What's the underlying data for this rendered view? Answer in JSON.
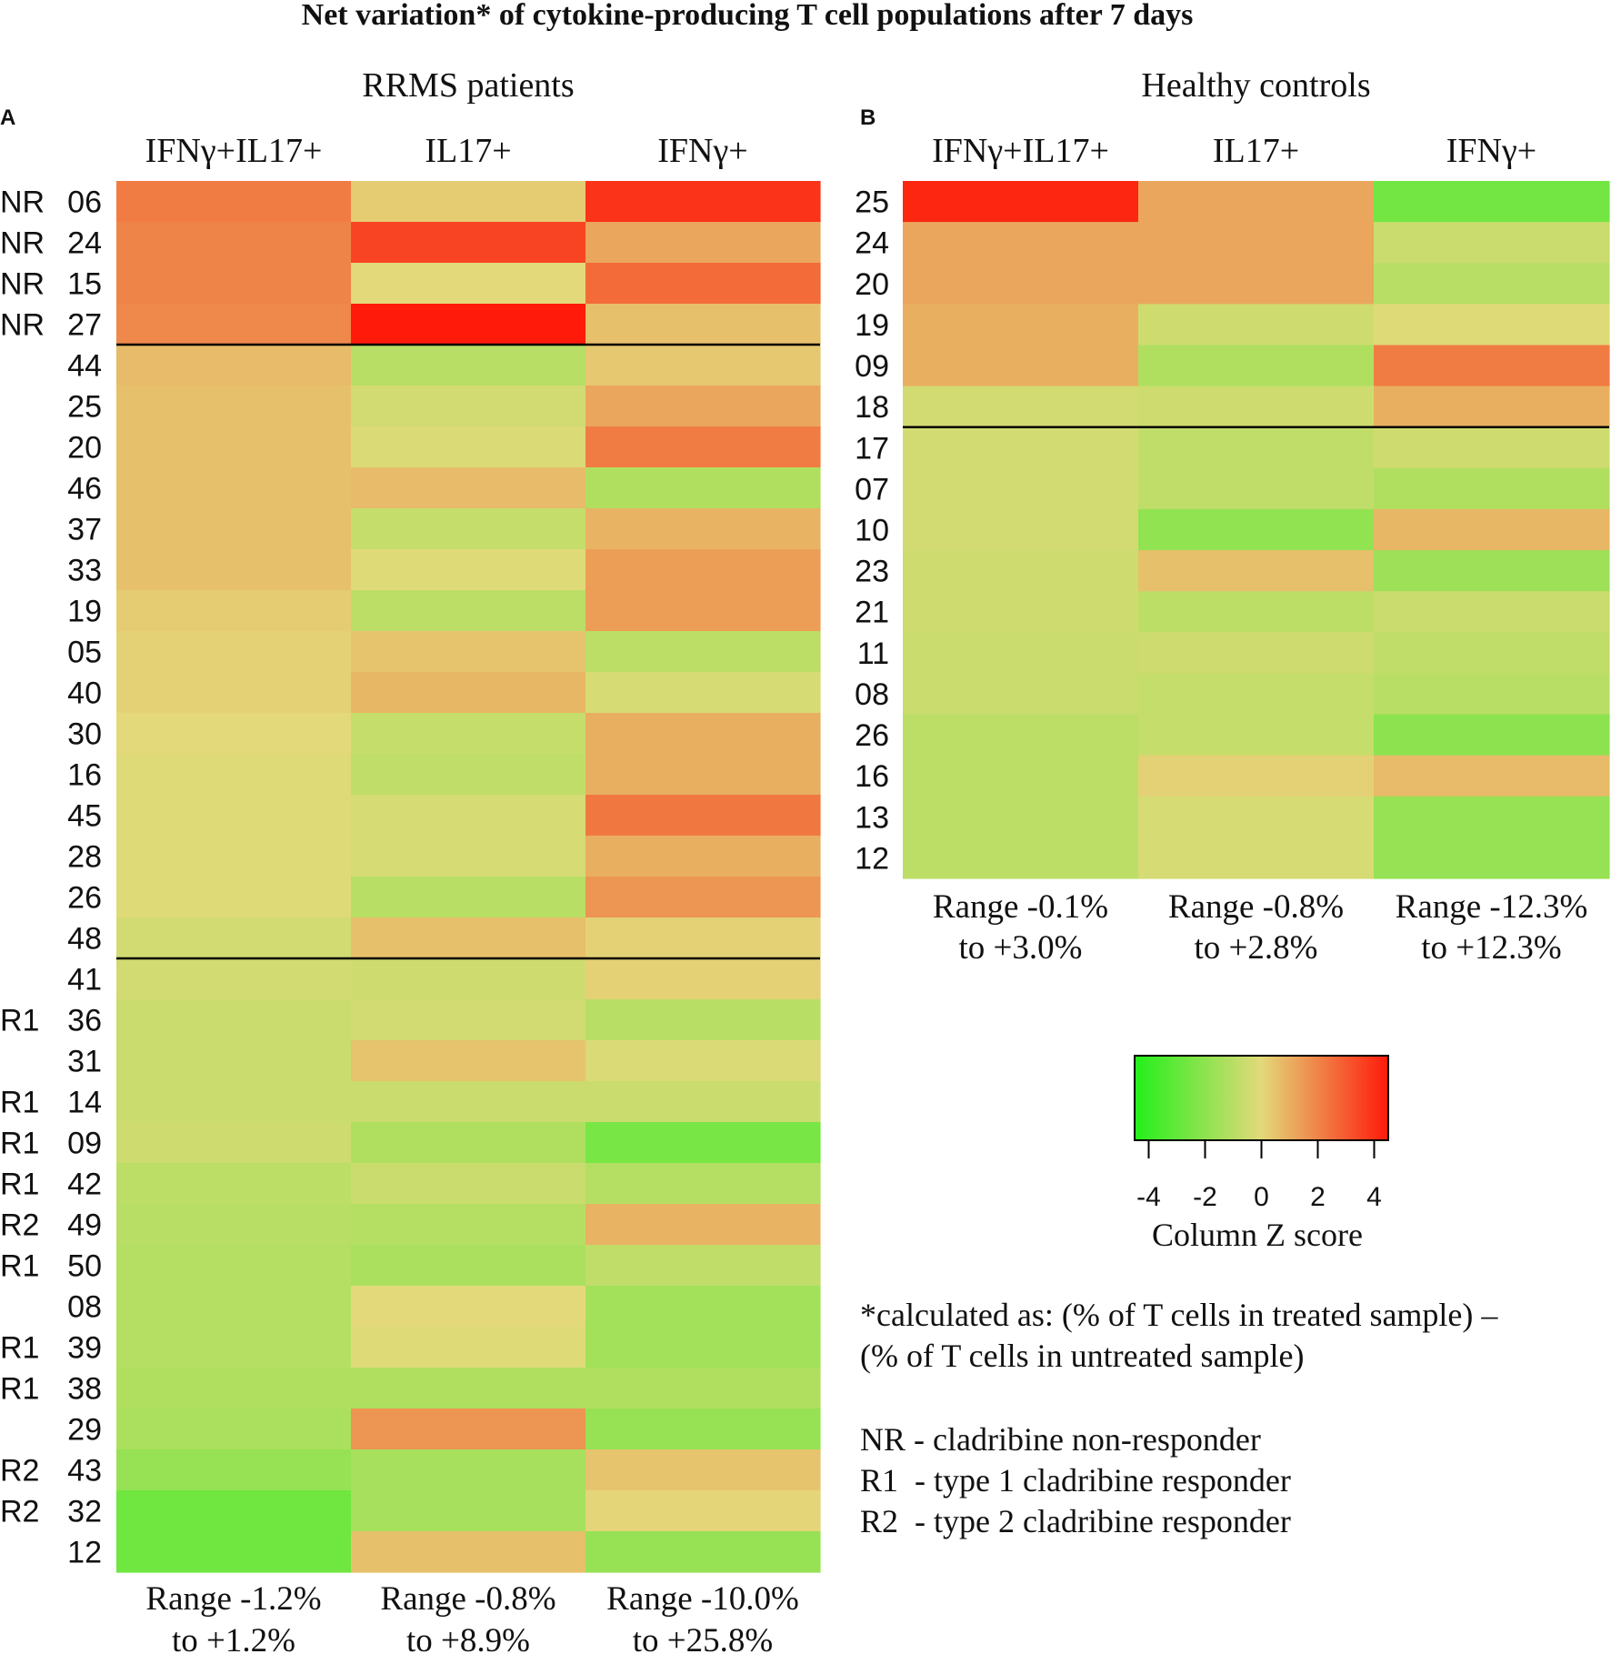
{
  "figure": {
    "title": "Net variation* of cytokine-producing T cell populations after 7 days",
    "footnote": [
      "*calculated as: (% of T cells in treated sample) –",
      "(% of T cells in untreated sample)"
    ],
    "abbreviations": [
      "NR - cladribine non-responder",
      "R1  - type 1 cladribine responder",
      "R2  - type 2 cladribine responder"
    ]
  },
  "colors": {
    "low": "#22f01a",
    "mid": "#e3d97a",
    "high": "#ff1a0a",
    "separator": "#000000",
    "text": "#111111"
  },
  "chart_data": [
    {
      "type": "heatmap",
      "panel": "A",
      "title": "RRMS patients",
      "columns": [
        "IFNγ+IL17+",
        "IL17+",
        "IFNγ+"
      ],
      "ranges": [
        [
          "Range -1.2%",
          "to +1.2%"
        ],
        [
          "Range -0.8%",
          "to +8.9%"
        ],
        [
          "Range -10.0%",
          "to +25.8%"
        ]
      ],
      "group_breaks_after_row": [
        4,
        19
      ],
      "rows": [
        {
          "group": "NR",
          "id": "06",
          "z": [
            2.2,
            0.3,
            3.9
          ]
        },
        {
          "group": "NR",
          "id": "24",
          "z": [
            2.0,
            3.5,
            1.2
          ]
        },
        {
          "group": "NR",
          "id": "15",
          "z": [
            2.0,
            0.0,
            2.6
          ]
        },
        {
          "group": "NR",
          "id": "27",
          "z": [
            1.9,
            4.5,
            0.6
          ]
        },
        {
          "group": "",
          "id": "44",
          "z": [
            0.7,
            -1.0,
            0.4
          ]
        },
        {
          "group": "",
          "id": "25",
          "z": [
            0.6,
            -0.4,
            1.2
          ]
        },
        {
          "group": "",
          "id": "20",
          "z": [
            0.6,
            -0.2,
            2.2
          ]
        },
        {
          "group": "",
          "id": "46",
          "z": [
            0.6,
            0.7,
            -1.2
          ]
        },
        {
          "group": "",
          "id": "37",
          "z": [
            0.6,
            -0.7,
            0.9
          ]
        },
        {
          "group": "",
          "id": "33",
          "z": [
            0.6,
            -0.1,
            1.4
          ]
        },
        {
          "group": "",
          "id": "19",
          "z": [
            0.3,
            -0.9,
            1.4
          ]
        },
        {
          "group": "",
          "id": "05",
          "z": [
            0.2,
            0.5,
            -0.9
          ]
        },
        {
          "group": "",
          "id": "40",
          "z": [
            0.2,
            0.8,
            -0.3
          ]
        },
        {
          "group": "",
          "id": "30",
          "z": [
            0.0,
            -0.7,
            1.0
          ]
        },
        {
          "group": "",
          "id": "16",
          "z": [
            -0.1,
            -0.8,
            1.0
          ]
        },
        {
          "group": "",
          "id": "45",
          "z": [
            -0.1,
            -0.3,
            2.3
          ]
        },
        {
          "group": "",
          "id": "28",
          "z": [
            -0.1,
            -0.3,
            1.0
          ]
        },
        {
          "group": "",
          "id": "26",
          "z": [
            -0.1,
            -1.0,
            1.6
          ]
        },
        {
          "group": "",
          "id": "48",
          "z": [
            -0.4,
            0.6,
            0.2
          ]
        },
        {
          "group": "",
          "id": "41",
          "z": [
            -0.4,
            -0.5,
            0.2
          ]
        },
        {
          "group": "R1",
          "id": "36",
          "z": [
            -0.6,
            -0.4,
            -1.0
          ]
        },
        {
          "group": "",
          "id": "31",
          "z": [
            -0.6,
            0.5,
            -0.2
          ]
        },
        {
          "group": "R1",
          "id": "14",
          "z": [
            -0.6,
            -0.6,
            -0.6
          ]
        },
        {
          "group": "R1",
          "id": "09",
          "z": [
            -0.5,
            -1.2,
            -2.5
          ]
        },
        {
          "group": "R1",
          "id": "42",
          "z": [
            -0.9,
            -0.6,
            -1.1
          ]
        },
        {
          "group": "R2",
          "id": "49",
          "z": [
            -1.0,
            -1.1,
            0.9
          ]
        },
        {
          "group": "R1",
          "id": "50",
          "z": [
            -1.1,
            -1.3,
            -0.8
          ]
        },
        {
          "group": "",
          "id": "08",
          "z": [
            -1.1,
            0.0,
            -1.5
          ]
        },
        {
          "group": "R1",
          "id": "39",
          "z": [
            -1.1,
            -0.1,
            -1.5
          ]
        },
        {
          "group": "R1",
          "id": "38",
          "z": [
            -1.2,
            -1.2,
            -1.2
          ]
        },
        {
          "group": "",
          "id": "29",
          "z": [
            -1.3,
            1.6,
            -1.8
          ]
        },
        {
          "group": "R2",
          "id": "43",
          "z": [
            -1.8,
            -1.4,
            0.5
          ]
        },
        {
          "group": "R2",
          "id": "32",
          "z": [
            -2.7,
            -1.4,
            0.1
          ]
        },
        {
          "group": "",
          "id": "12",
          "z": [
            -2.7,
            0.6,
            -1.8
          ]
        }
      ]
    },
    {
      "type": "heatmap",
      "panel": "B",
      "title": "Healthy controls",
      "columns": [
        "IFNγ+IL17+",
        "IL17+",
        "IFNγ+"
      ],
      "ranges": [
        [
          "Range -0.1%",
          "to +3.0%"
        ],
        [
          "Range -0.8%",
          "to +2.8%"
        ],
        [
          "Range -12.3%",
          "to +12.3%"
        ]
      ],
      "group_breaks_after_row": [
        6
      ],
      "rows": [
        {
          "group": "",
          "id": "25",
          "z": [
            4.2,
            1.2,
            -2.6
          ]
        },
        {
          "group": "",
          "id": "24",
          "z": [
            1.2,
            1.2,
            -0.6
          ]
        },
        {
          "group": "",
          "id": "20",
          "z": [
            1.2,
            1.2,
            -1.0
          ]
        },
        {
          "group": "",
          "id": "19",
          "z": [
            1.0,
            -0.5,
            -0.1
          ]
        },
        {
          "group": "",
          "id": "09",
          "z": [
            1.0,
            -1.2,
            2.2
          ]
        },
        {
          "group": "",
          "id": "18",
          "z": [
            -0.4,
            -0.5,
            1.0
          ]
        },
        {
          "group": "",
          "id": "17",
          "z": [
            -0.4,
            -0.8,
            -0.5
          ]
        },
        {
          "group": "",
          "id": "07",
          "z": [
            -0.4,
            -0.8,
            -1.2
          ]
        },
        {
          "group": "",
          "id": "10",
          "z": [
            -0.4,
            -1.9,
            0.8
          ]
        },
        {
          "group": "",
          "id": "23",
          "z": [
            -0.5,
            0.6,
            -1.6
          ]
        },
        {
          "group": "",
          "id": "21",
          "z": [
            -0.5,
            -0.9,
            -0.6
          ]
        },
        {
          "group": "",
          "id": "11",
          "z": [
            -0.6,
            -0.5,
            -0.8
          ]
        },
        {
          "group": "",
          "id": "08",
          "z": [
            -0.6,
            -0.7,
            -1.0
          ]
        },
        {
          "group": "",
          "id": "26",
          "z": [
            -0.9,
            -0.7,
            -2.0
          ]
        },
        {
          "group": "",
          "id": "16",
          "z": [
            -0.9,
            0.2,
            0.7
          ]
        },
        {
          "group": "",
          "id": "13",
          "z": [
            -0.9,
            -0.3,
            -1.8
          ]
        },
        {
          "group": "",
          "id": "12",
          "z": [
            -0.9,
            -0.3,
            -1.8
          ]
        }
      ]
    }
  ],
  "legend": {
    "title": "Column Z score",
    "ticks": [
      "-4",
      "-2",
      "0",
      "2",
      "4"
    ],
    "tick_values": [
      -4,
      -2,
      0,
      2,
      4
    ],
    "range": [
      -4.5,
      4.5
    ]
  }
}
